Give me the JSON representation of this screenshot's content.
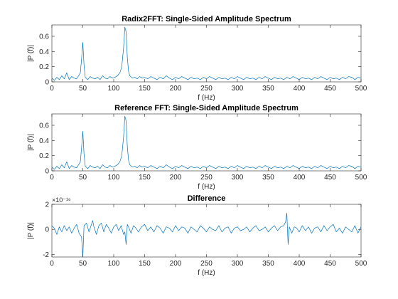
{
  "line_color": "#0072BD",
  "chart_data": [
    {
      "type": "line",
      "title": "Radix2FFT: Single-Sided Amplitude Spectrum",
      "xlabel": "f (Hz)",
      "ylabel": "|P (f)|",
      "xlim": [
        0,
        500
      ],
      "ylim": [
        0,
        0.75
      ],
      "xticks": [
        0,
        50,
        100,
        150,
        200,
        250,
        300,
        350,
        400,
        450,
        500
      ],
      "yticks": [
        0,
        0.2,
        0.4,
        0.6
      ],
      "ytick_labels": [
        "0",
        "0.2",
        "0.4",
        "0.6"
      ],
      "exponent_label": "",
      "grid": false,
      "series": [
        {
          "x": [
            0,
            4,
            8,
            12,
            16,
            20,
            24,
            28,
            32,
            36,
            40,
            44,
            46,
            48,
            50,
            52,
            54,
            58,
            62,
            66,
            70,
            74,
            78,
            82,
            86,
            90,
            94,
            98,
            102,
            106,
            110,
            113,
            116,
            118,
            120,
            122,
            124,
            126,
            130,
            134,
            138,
            142,
            146,
            150,
            155,
            160,
            165,
            170,
            175,
            180,
            185,
            190,
            195,
            200,
            205,
            210,
            215,
            220,
            225,
            230,
            235,
            240,
            245,
            250,
            255,
            260,
            265,
            270,
            275,
            280,
            285,
            290,
            295,
            300,
            305,
            310,
            315,
            320,
            325,
            330,
            335,
            340,
            345,
            350,
            355,
            360,
            365,
            370,
            375,
            380,
            385,
            390,
            395,
            400,
            405,
            410,
            415,
            420,
            425,
            430,
            435,
            440,
            445,
            450,
            455,
            460,
            465,
            470,
            475,
            480,
            485,
            490,
            495,
            500
          ],
          "values": [
            0.05,
            0.02,
            0.06,
            0.03,
            0.08,
            0.04,
            0.12,
            0.03,
            0.07,
            0.05,
            0.04,
            0.09,
            0.12,
            0.3,
            0.52,
            0.22,
            0.06,
            0.03,
            0.07,
            0.05,
            0.04,
            0.06,
            0.03,
            0.08,
            0.05,
            0.04,
            0.07,
            0.05,
            0.06,
            0.08,
            0.12,
            0.2,
            0.45,
            0.72,
            0.66,
            0.32,
            0.14,
            0.08,
            0.05,
            0.06,
            0.04,
            0.07,
            0.05,
            0.06,
            0.04,
            0.07,
            0.05,
            0.03,
            0.06,
            0.04,
            0.08,
            0.05,
            0.03,
            0.06,
            0.04,
            0.07,
            0.05,
            0.03,
            0.06,
            0.04,
            0.05,
            0.03,
            0.06,
            0.04,
            0.07,
            0.05,
            0.03,
            0.06,
            0.04,
            0.05,
            0.03,
            0.06,
            0.04,
            0.07,
            0.05,
            0.03,
            0.06,
            0.04,
            0.05,
            0.03,
            0.06,
            0.04,
            0.07,
            0.05,
            0.03,
            0.06,
            0.04,
            0.05,
            0.03,
            0.06,
            0.04,
            0.07,
            0.05,
            0.03,
            0.06,
            0.04,
            0.05,
            0.03,
            0.06,
            0.04,
            0.07,
            0.05,
            0.03,
            0.06,
            0.04,
            0.05,
            0.03,
            0.06,
            0.04,
            0.07,
            0.06,
            0.03,
            0.06,
            0.05
          ]
        }
      ]
    },
    {
      "type": "line",
      "title": "Reference FFT: Single-Sided Amplitude Spectrum",
      "xlabel": "f (Hz)",
      "ylabel": "|P (f)|",
      "xlim": [
        0,
        500
      ],
      "ylim": [
        0,
        0.75
      ],
      "xticks": [
        0,
        50,
        100,
        150,
        200,
        250,
        300,
        350,
        400,
        450,
        500
      ],
      "yticks": [
        0,
        0.2,
        0.4,
        0.6
      ],
      "ytick_labels": [
        "0",
        "0.2",
        "0.4",
        "0.6"
      ],
      "exponent_label": "",
      "grid": false,
      "series": [
        {
          "x": [
            0,
            4,
            8,
            12,
            16,
            20,
            24,
            28,
            32,
            36,
            40,
            44,
            46,
            48,
            50,
            52,
            54,
            58,
            62,
            66,
            70,
            74,
            78,
            82,
            86,
            90,
            94,
            98,
            102,
            106,
            110,
            113,
            116,
            118,
            120,
            122,
            124,
            126,
            130,
            134,
            138,
            142,
            146,
            150,
            155,
            160,
            165,
            170,
            175,
            180,
            185,
            190,
            195,
            200,
            205,
            210,
            215,
            220,
            225,
            230,
            235,
            240,
            245,
            250,
            255,
            260,
            265,
            270,
            275,
            280,
            285,
            290,
            295,
            300,
            305,
            310,
            315,
            320,
            325,
            330,
            335,
            340,
            345,
            350,
            355,
            360,
            365,
            370,
            375,
            380,
            385,
            390,
            395,
            400,
            405,
            410,
            415,
            420,
            425,
            430,
            435,
            440,
            445,
            450,
            455,
            460,
            465,
            470,
            475,
            480,
            485,
            490,
            495,
            500
          ],
          "values": [
            0.05,
            0.02,
            0.06,
            0.03,
            0.08,
            0.04,
            0.12,
            0.03,
            0.07,
            0.05,
            0.04,
            0.09,
            0.12,
            0.3,
            0.52,
            0.22,
            0.06,
            0.03,
            0.07,
            0.05,
            0.04,
            0.06,
            0.03,
            0.08,
            0.05,
            0.04,
            0.07,
            0.05,
            0.06,
            0.08,
            0.12,
            0.2,
            0.45,
            0.72,
            0.66,
            0.32,
            0.14,
            0.08,
            0.05,
            0.06,
            0.04,
            0.07,
            0.05,
            0.06,
            0.04,
            0.07,
            0.05,
            0.03,
            0.06,
            0.04,
            0.08,
            0.05,
            0.03,
            0.06,
            0.04,
            0.07,
            0.05,
            0.03,
            0.06,
            0.04,
            0.05,
            0.03,
            0.06,
            0.04,
            0.07,
            0.05,
            0.03,
            0.06,
            0.04,
            0.05,
            0.03,
            0.06,
            0.04,
            0.07,
            0.05,
            0.03,
            0.06,
            0.04,
            0.05,
            0.03,
            0.06,
            0.04,
            0.07,
            0.05,
            0.03,
            0.06,
            0.04,
            0.05,
            0.03,
            0.06,
            0.04,
            0.07,
            0.05,
            0.03,
            0.06,
            0.04,
            0.05,
            0.03,
            0.06,
            0.04,
            0.07,
            0.05,
            0.03,
            0.06,
            0.04,
            0.05,
            0.03,
            0.06,
            0.04,
            0.07,
            0.06,
            0.03,
            0.06,
            0.05
          ]
        }
      ]
    },
    {
      "type": "line",
      "title": "Difference",
      "xlabel": "f (Hz)",
      "ylabel": "|P (f)|",
      "xlim": [
        0,
        500
      ],
      "ylim": [
        -2.2,
        2
      ],
      "xticks": [
        0,
        50,
        100,
        150,
        200,
        250,
        300,
        350,
        400,
        450,
        500
      ],
      "yticks": [
        -2,
        0,
        2
      ],
      "ytick_labels": [
        "-2",
        "0",
        "2"
      ],
      "exponent_label": "×10⁻¹⁶",
      "grid": false,
      "series": [
        {
          "x": [
            0,
            4,
            8,
            12,
            16,
            20,
            24,
            28,
            32,
            36,
            40,
            44,
            48,
            50,
            52,
            56,
            60,
            64,
            66,
            68,
            72,
            76,
            80,
            84,
            88,
            92,
            96,
            100,
            104,
            108,
            112,
            116,
            118,
            120,
            122,
            124,
            128,
            132,
            136,
            140,
            145,
            150,
            155,
            160,
            165,
            170,
            175,
            180,
            185,
            190,
            195,
            200,
            205,
            210,
            215,
            220,
            225,
            230,
            235,
            240,
            245,
            250,
            255,
            260,
            265,
            270,
            275,
            280,
            285,
            290,
            295,
            300,
            305,
            310,
            315,
            320,
            325,
            330,
            335,
            340,
            345,
            350,
            355,
            360,
            365,
            370,
            375,
            378,
            380,
            382,
            384,
            388,
            392,
            396,
            400,
            405,
            410,
            415,
            420,
            425,
            430,
            435,
            440,
            445,
            450,
            455,
            460,
            465,
            470,
            475,
            480,
            485,
            490,
            495,
            500
          ],
          "values": [
            0.3,
            0.1,
            -0.4,
            0.2,
            -0.2,
            0.3,
            -0.1,
            0.2,
            -0.3,
            0.1,
            0.4,
            -0.3,
            -0.6,
            -2.2,
            0.3,
            0.5,
            -0.2,
            0.4,
            0.7,
            0.2,
            -0.4,
            0.3,
            0.5,
            -0.2,
            0.4,
            0.1,
            -0.3,
            0.2,
            0.4,
            -0.1,
            0.3,
            -0.4,
            -0.2,
            -1.2,
            0.4,
            0.2,
            -0.3,
            0.3,
            0.1,
            -0.2,
            0.2,
            0.4,
            -0.1,
            0.2,
            -0.2,
            0.3,
            0.1,
            -0.3,
            0.2,
            0.1,
            -0.2,
            0.3,
            -0.1,
            0.2,
            0.1,
            -0.3,
            0.2,
            0.0,
            -0.2,
            0.3,
            0.1,
            -0.2,
            0.2,
            0.0,
            -0.1,
            0.3,
            -0.2,
            0.1,
            0.2,
            -0.3,
            0.1,
            0.2,
            -0.1,
            0.0,
            0.2,
            -0.2,
            0.1,
            0.3,
            -0.1,
            0.0,
            0.2,
            -0.2,
            0.1,
            0.3,
            -0.1,
            0.2,
            0.3,
            0.6,
            1.3,
            -1.2,
            0.2,
            -0.3,
            0.2,
            0.1,
            -0.2,
            0.3,
            -0.1,
            0.2,
            -0.3,
            0.1,
            0.2,
            -0.2,
            0.3,
            -0.1,
            0.2,
            0.4,
            -0.2,
            0.1,
            -0.3,
            0.2,
            0.0,
            -0.2,
            0.3,
            -0.3,
            0.2
          ]
        }
      ]
    }
  ]
}
